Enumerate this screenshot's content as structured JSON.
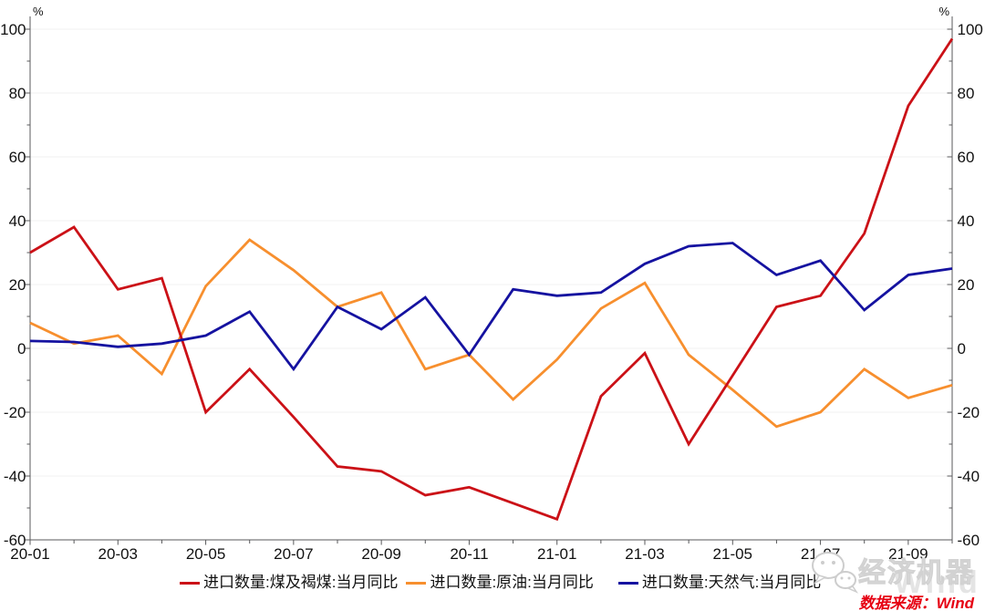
{
  "chart_data": {
    "type": "line",
    "title": "",
    "unit_label": "%",
    "categories": [
      "20-01",
      "20-02",
      "20-03",
      "20-04",
      "20-05",
      "20-06",
      "20-07",
      "20-08",
      "20-09",
      "20-10",
      "20-11",
      "20-12",
      "21-01",
      "21-02",
      "21-03",
      "21-04",
      "21-05",
      "21-06",
      "21-07",
      "21-08",
      "21-09",
      "21-10"
    ],
    "x_label_every": 2,
    "series": [
      {
        "name": "进口数量:煤及褐煤:当月同比",
        "color": "#cb1117",
        "values": [
          30,
          38,
          18.5,
          22,
          -20,
          -6.5,
          -21.5,
          -37,
          -38.5,
          -46,
          -43.5,
          -48.5,
          -53.5,
          -15,
          -1.5,
          -30,
          -8.5,
          13,
          16.5,
          36,
          76,
          97
        ]
      },
      {
        "name": "进口数量:原油:当月同比",
        "color": "#f78f2e",
        "values": [
          8,
          1.5,
          4,
          -8,
          19.5,
          34,
          24.5,
          13,
          17.5,
          -6.5,
          -2,
          -16,
          -3.5,
          12.5,
          20.5,
          -2,
          -13,
          -24.5,
          -20,
          -6.5,
          -15.5,
          -11.5
        ]
      },
      {
        "name": "进口数量:天然气:当月同比",
        "color": "#1512a0",
        "values": [
          2.3,
          2,
          0.5,
          1.5,
          4,
          11.5,
          -6.5,
          13,
          6,
          16,
          -2,
          18.5,
          16.5,
          17.5,
          26.5,
          32,
          33,
          23,
          27.5,
          12,
          23,
          25
        ]
      }
    ],
    "ylim": [
      -60,
      100
    ],
    "y_major_step": 20,
    "y_minor_step": 10,
    "grid": true,
    "legend_position": "bottom",
    "axis_color": "#58595b",
    "grid_color": "#f2f2f2",
    "tick_label_color": "#111111"
  },
  "watermark": {
    "brand": "经济机器",
    "wind": "Wind"
  },
  "footer": {
    "source": "数据来源：Wind"
  }
}
